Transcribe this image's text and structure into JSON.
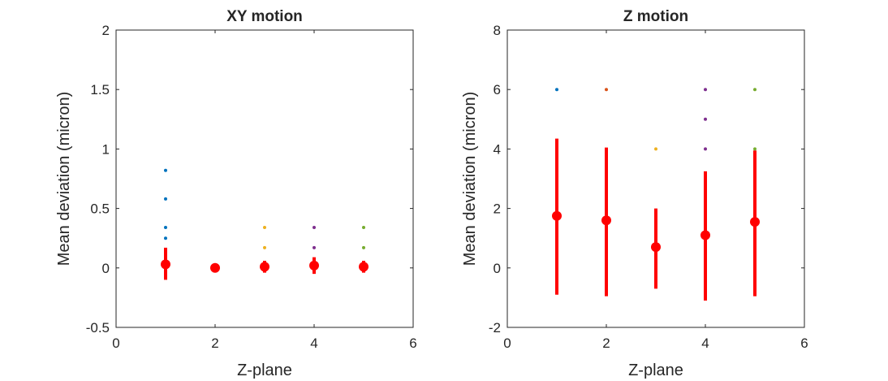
{
  "chart_data": [
    {
      "type": "scatter",
      "title": "XY motion",
      "xlabel": "Z-plane",
      "ylabel": "Mean deviation (micron)",
      "xlim": [
        0,
        6
      ],
      "ylim": [
        -0.5,
        2
      ],
      "xticks": [
        "0",
        "2",
        "4",
        "6"
      ],
      "yticks": [
        "-0.5",
        "0",
        "0.5",
        "1",
        "1.5",
        "2"
      ],
      "grid": false,
      "scatter_points": [
        {
          "x": 1,
          "y": 0.82,
          "color": "#0072BD"
        },
        {
          "x": 1,
          "y": 0.58,
          "color": "#0072BD"
        },
        {
          "x": 1,
          "y": 0.34,
          "color": "#0072BD"
        },
        {
          "x": 1,
          "y": 0.25,
          "color": "#0072BD"
        },
        {
          "x": 3,
          "y": 0.34,
          "color": "#EDB120"
        },
        {
          "x": 3,
          "y": 0.17,
          "color": "#EDB120"
        },
        {
          "x": 4,
          "y": 0.34,
          "color": "#7E2F8E"
        },
        {
          "x": 4,
          "y": 0.17,
          "color": "#7E2F8E"
        },
        {
          "x": 5,
          "y": 0.34,
          "color": "#77AC30"
        },
        {
          "x": 5,
          "y": 0.17,
          "color": "#77AC30"
        }
      ],
      "errorbar_series": {
        "color": "#FF0000",
        "points": [
          {
            "x": 1,
            "mean": 0.03,
            "lower": -0.1,
            "upper": 0.17
          },
          {
            "x": 2,
            "mean": 0.0,
            "lower": 0.0,
            "upper": 0.0
          },
          {
            "x": 3,
            "mean": 0.01,
            "lower": -0.04,
            "upper": 0.06
          },
          {
            "x": 4,
            "mean": 0.02,
            "lower": -0.05,
            "upper": 0.09
          },
          {
            "x": 5,
            "mean": 0.01,
            "lower": -0.04,
            "upper": 0.06
          }
        ]
      }
    },
    {
      "type": "scatter",
      "title": "Z motion",
      "xlabel": "Z-plane",
      "ylabel": "Mean deviation (micron)",
      "xlim": [
        0,
        6
      ],
      "ylim": [
        -2,
        8
      ],
      "xticks": [
        "0",
        "2",
        "4",
        "6"
      ],
      "yticks": [
        "-2",
        "0",
        "2",
        "4",
        "6",
        "8"
      ],
      "grid": false,
      "scatter_points": [
        {
          "x": 1,
          "y": 6,
          "color": "#0072BD"
        },
        {
          "x": 2,
          "y": 6,
          "color": "#D95319"
        },
        {
          "x": 3,
          "y": 4,
          "color": "#EDB120"
        },
        {
          "x": 4,
          "y": 6,
          "color": "#7E2F8E"
        },
        {
          "x": 4,
          "y": 5,
          "color": "#7E2F8E"
        },
        {
          "x": 4,
          "y": 4,
          "color": "#7E2F8E"
        },
        {
          "x": 5,
          "y": 6,
          "color": "#77AC30"
        },
        {
          "x": 5,
          "y": 4,
          "color": "#77AC30"
        }
      ],
      "errorbar_series": {
        "color": "#FF0000",
        "points": [
          {
            "x": 1,
            "mean": 1.75,
            "lower": -0.9,
            "upper": 4.35
          },
          {
            "x": 2,
            "mean": 1.6,
            "lower": -0.95,
            "upper": 4.05
          },
          {
            "x": 3,
            "mean": 0.7,
            "lower": -0.7,
            "upper": 2.0
          },
          {
            "x": 4,
            "mean": 1.1,
            "lower": -1.1,
            "upper": 3.25
          },
          {
            "x": 5,
            "mean": 1.55,
            "lower": -0.95,
            "upper": 3.95
          }
        ]
      }
    }
  ]
}
